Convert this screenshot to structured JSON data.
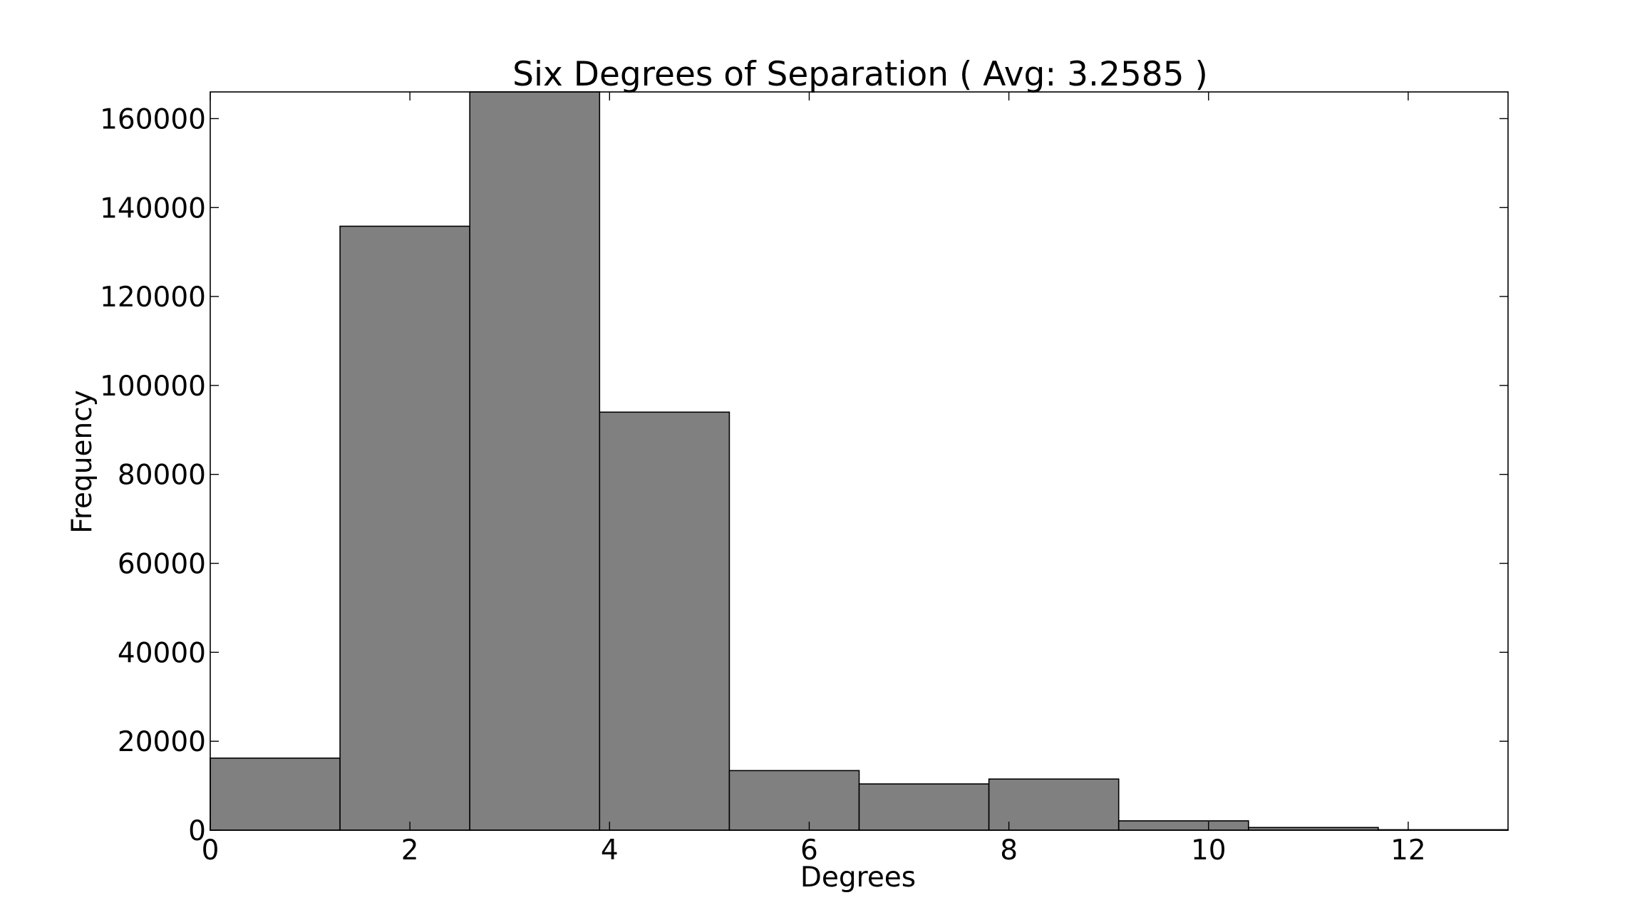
{
  "chart_data": {
    "type": "bar",
    "title": "Six Degrees of Separation ( Avg: 3.2585 )",
    "xlabel": "Degrees",
    "ylabel": "Frequency",
    "xlim": [
      0,
      13
    ],
    "ylim": [
      0,
      166000
    ],
    "xticks": [
      0,
      2,
      4,
      6,
      8,
      10,
      12
    ],
    "xtick_labels": [
      "0",
      "2",
      "4",
      "6",
      "8",
      "10",
      "12"
    ],
    "yticks": [
      0,
      20000,
      40000,
      60000,
      80000,
      100000,
      120000,
      140000,
      160000
    ],
    "ytick_labels": [
      "0",
      "20000",
      "40000",
      "60000",
      "80000",
      "100000",
      "120000",
      "140000",
      "160000"
    ],
    "bins": [
      {
        "x0": 0.0,
        "x1": 1.3,
        "value": 16200
      },
      {
        "x0": 1.3,
        "x1": 2.6,
        "value": 135800
      },
      {
        "x0": 2.6,
        "x1": 3.9,
        "value": 166000
      },
      {
        "x0": 3.9,
        "x1": 5.2,
        "value": 94000
      },
      {
        "x0": 5.2,
        "x1": 6.5,
        "value": 13400
      },
      {
        "x0": 6.5,
        "x1": 7.8,
        "value": 10400
      },
      {
        "x0": 7.8,
        "x1": 9.1,
        "value": 11500
      },
      {
        "x0": 9.1,
        "x1": 10.4,
        "value": 2100
      },
      {
        "x0": 10.4,
        "x1": 11.7,
        "value": 600
      },
      {
        "x0": 11.7,
        "x1": 13.0,
        "value": 100
      }
    ],
    "grid": false,
    "bar_color": "#808080",
    "edge_color": "#000000"
  }
}
